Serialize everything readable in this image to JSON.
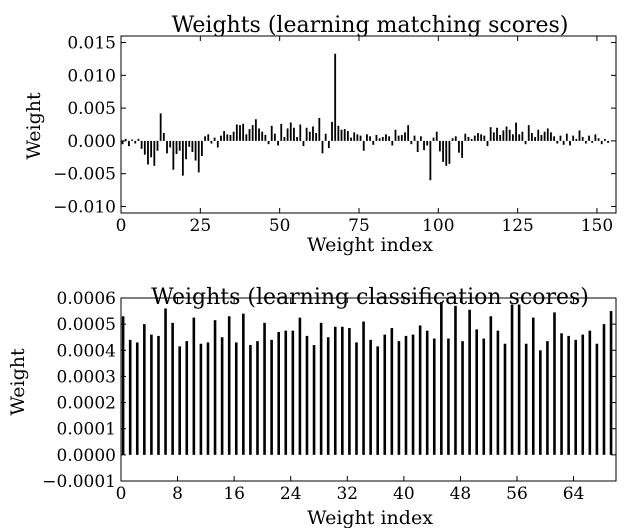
{
  "chart_data": [
    {
      "type": "bar",
      "title": "Weights (learning matching scores)",
      "xlabel": "Weight index",
      "ylabel": "Weight",
      "xlim": [
        0,
        156
      ],
      "ylim": [
        -0.011,
        0.016
      ],
      "xticks": [
        0,
        25,
        50,
        75,
        100,
        125,
        150
      ],
      "xtick_labels": [
        "0",
        "25",
        "50",
        "75",
        "100",
        "125",
        "150"
      ],
      "yticks": [
        -0.01,
        -0.005,
        0.0,
        0.005,
        0.01,
        0.015
      ],
      "ytick_labels": [
        "−0.010",
        "−0.005",
        "0.000",
        "0.005",
        "0.010",
        "0.015"
      ],
      "grid": false,
      "bar_color": "#000000",
      "values": [
        -0.0005,
        0.0003,
        -0.0008,
        0.0002,
        -0.0004,
        0.0003,
        -0.0012,
        -0.0021,
        -0.0036,
        -0.0025,
        -0.0038,
        -0.0015,
        0.0042,
        0.0012,
        -0.0019,
        -0.001,
        -0.0044,
        -0.002,
        -0.0015,
        -0.0053,
        -0.0028,
        -0.0009,
        -0.0017,
        -0.003,
        -0.0048,
        -0.0023,
        0.0007,
        0.001,
        -0.0004,
        0.0005,
        -0.001,
        0.0008,
        0.0015,
        0.001,
        0.0009,
        0.0014,
        0.0025,
        0.0024,
        0.0026,
        0.001,
        0.0018,
        0.0024,
        0.0033,
        0.0019,
        0.0014,
        0.0009,
        -0.0005,
        0.0023,
        0.0011,
        -0.0007,
        0.0026,
        0.0006,
        0.0019,
        0.0028,
        0.002,
        0.0006,
        0.0025,
        -0.0008,
        0.002,
        0.0014,
        0.0022,
        0.0012,
        0.0035,
        -0.0019,
        0.0011,
        -0.0011,
        0.0029,
        0.0133,
        0.0023,
        0.0017,
        0.0018,
        0.0015,
        0.0005,
        0.0013,
        0.001,
        0.0008,
        -0.0015,
        0.001,
        0.0007,
        -0.0006,
        0.0009,
        0.0004,
        0.0006,
        0.001,
        0.0007,
        -0.0007,
        0.0017,
        0.0008,
        0.0009,
        0.0013,
        0.0024,
        -0.0005,
        0.0008,
        -0.0017,
        0.0007,
        -0.0014,
        -0.0007,
        -0.006,
        0.0005,
        0.0014,
        -0.0016,
        -0.0032,
        -0.0038,
        -0.0035,
        0.0004,
        0.0007,
        -0.0018,
        -0.0026,
        0.0011,
        0.0006,
        0.0003,
        0.0008,
        0.0012,
        0.001,
        0.0008,
        -0.0008,
        0.0021,
        0.0013,
        0.002,
        0.0009,
        0.0016,
        0.0022,
        0.0017,
        0.001,
        0.0028,
        0.001,
        0.0014,
        -0.0005,
        0.0024,
        0.0012,
        0.0006,
        0.0017,
        0.0009,
        0.0014,
        0.0019,
        0.0013,
        0.0007,
        -0.0004,
        0.0008,
        -0.0006,
        0.0011,
        -0.0007,
        0.0008,
        0.0003,
        0.0016,
        0.0006,
        -0.0004,
        0.0008,
        -0.0003,
        0.001,
        0.0004,
        -0.0005,
        0.0003,
        -0.0003
      ]
    },
    {
      "type": "bar",
      "title": "Weights (learning classification scores)",
      "xlabel": "Weight index",
      "ylabel": "Weight",
      "xlim": [
        0,
        70
      ],
      "ylim": [
        -0.0001,
        0.0006
      ],
      "xticks": [
        0,
        8,
        16,
        24,
        32,
        40,
        48,
        56,
        64
      ],
      "xtick_labels": [
        "0",
        "8",
        "16",
        "24",
        "32",
        "40",
        "48",
        "56",
        "64"
      ],
      "yticks": [
        -0.0001,
        0.0,
        0.0001,
        0.0002,
        0.0003,
        0.0004,
        0.0005,
        0.0006
      ],
      "ytick_labels": [
        "−0.0001",
        "0.0000",
        "0.0001",
        "0.0002",
        "0.0003",
        "0.0004",
        "0.0005",
        "0.0006"
      ],
      "grid": false,
      "bar_color": "#000000",
      "values": [
        0.00053,
        0.00044,
        0.00043,
        0.0005,
        0.00046,
        0.000455,
        0.00056,
        0.000505,
        0.000415,
        0.000435,
        0.000525,
        0.000425,
        0.00043,
        0.000515,
        0.00045,
        0.00053,
        0.00043,
        0.00054,
        0.00042,
        0.000435,
        0.000505,
        0.00044,
        0.00047,
        0.000475,
        0.000475,
        0.000525,
        0.000455,
        0.00042,
        0.000505,
        0.00045,
        0.00049,
        0.00049,
        0.000485,
        0.00043,
        0.00051,
        0.00044,
        0.000415,
        0.00046,
        0.000485,
        0.000435,
        0.000455,
        0.00046,
        0.000495,
        0.000475,
        0.000445,
        0.000585,
        0.000445,
        0.00057,
        0.000435,
        0.000555,
        0.00048,
        0.000445,
        0.00053,
        0.000475,
        0.000425,
        0.000575,
        0.000575,
        0.000425,
        0.000525,
        0.0004,
        0.000435,
        0.000545,
        0.000465,
        0.000455,
        0.00044,
        0.00046,
        0.000475,
        0.000425,
        0.0005,
        0.00055
      ]
    }
  ]
}
